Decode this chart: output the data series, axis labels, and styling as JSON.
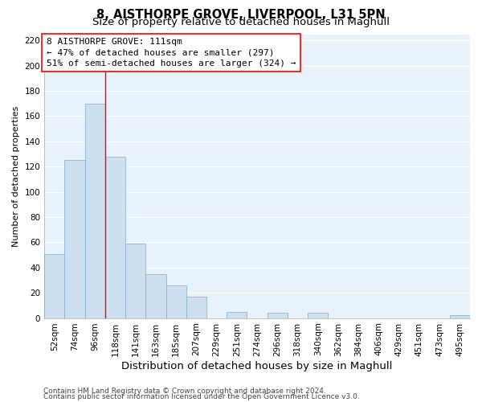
{
  "title": "8, AISTHORPE GROVE, LIVERPOOL, L31 5PN",
  "subtitle": "Size of property relative to detached houses in Maghull",
  "xlabel": "Distribution of detached houses by size in Maghull",
  "ylabel": "Number of detached properties",
  "bar_color": "#cce0f0",
  "bar_edge_color": "#8ab4d4",
  "background_color": "#ffffff",
  "plot_bg_color": "#e8f2fa",
  "grid_color": "#ffffff",
  "bin_labels": [
    "52sqm",
    "74sqm",
    "96sqm",
    "118sqm",
    "141sqm",
    "163sqm",
    "185sqm",
    "207sqm",
    "229sqm",
    "251sqm",
    "274sqm",
    "296sqm",
    "318sqm",
    "340sqm",
    "362sqm",
    "384sqm",
    "406sqm",
    "429sqm",
    "451sqm",
    "473sqm",
    "495sqm"
  ],
  "bar_heights": [
    51,
    125,
    170,
    128,
    59,
    35,
    26,
    17,
    0,
    5,
    0,
    4,
    0,
    4,
    0,
    0,
    0,
    0,
    0,
    0,
    2
  ],
  "ylim": [
    0,
    225
  ],
  "yticks": [
    0,
    20,
    40,
    60,
    80,
    100,
    120,
    140,
    160,
    180,
    200,
    220
  ],
  "ref_line_x": 2.5,
  "ref_line_label": "8 AISTHORPE GROVE: 111sqm",
  "annotation_line1": "← 47% of detached houses are smaller (297)",
  "annotation_line2": "51% of semi-detached houses are larger (324) →",
  "footer_line1": "Contains HM Land Registry data © Crown copyright and database right 2024.",
  "footer_line2": "Contains public sector information licensed under the Open Government Licence v3.0.",
  "title_fontsize": 10.5,
  "subtitle_fontsize": 9.5,
  "xlabel_fontsize": 9.5,
  "ylabel_fontsize": 8,
  "tick_fontsize": 7.5,
  "annotation_fontsize": 8,
  "footer_fontsize": 6.5
}
